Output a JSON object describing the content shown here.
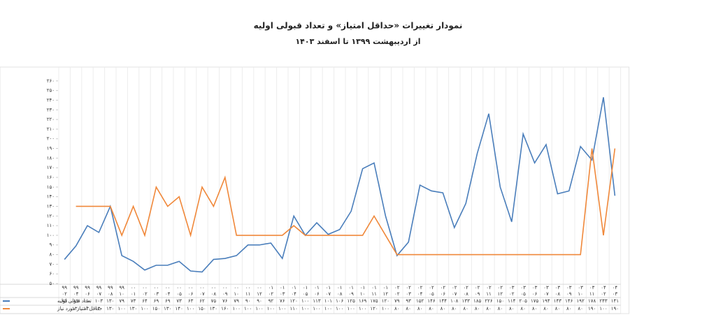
{
  "chart_data": {
    "type": "line",
    "title": "نمودار تغییرات «حداقل امتیاز» و تعداد قبولی اولیه",
    "subtitle": "از اردیبهشت ۱۳۹۹ تا اسفند ۱۴۰۳",
    "categories": [
      [
        "۹۹",
        "۰۲"
      ],
      [
        "۹۹",
        "۰۴"
      ],
      [
        "۹۹",
        "۰۶"
      ],
      [
        "۹۹",
        "۰۷"
      ],
      [
        "۹۹",
        "۰۸"
      ],
      [
        "۹۹",
        "۱۰"
      ],
      [
        "۰۰",
        "۰۱"
      ],
      [
        "۰۰",
        "۰۲"
      ],
      [
        "۰۰",
        "۰۳"
      ],
      [
        "۰۰",
        "۰۴"
      ],
      [
        "۰۰",
        "۰۵"
      ],
      [
        "۰۰",
        "۰۶"
      ],
      [
        "۰۰",
        "۰۷"
      ],
      [
        "۰۰",
        "۰۸"
      ],
      [
        "۰۰",
        "۰۹"
      ],
      [
        "۰۰",
        "۱۰"
      ],
      [
        "۰۰",
        "۱۱"
      ],
      [
        "۰۰",
        "۱۲"
      ],
      [
        "۰۱",
        "۰۲"
      ],
      [
        "۰۱",
        "۰۳"
      ],
      [
        "۰۱",
        "۰۴"
      ],
      [
        "۰۱",
        "۰۵"
      ],
      [
        "۰۱",
        "۰۶"
      ],
      [
        "۰۱",
        "۰۷"
      ],
      [
        "۰۱",
        "۰۸"
      ],
      [
        "۰۱",
        "۰۹"
      ],
      [
        "۰۱",
        "۱۰"
      ],
      [
        "۰۱",
        "۱۱"
      ],
      [
        "۰۱",
        "۱۲"
      ],
      [
        "۰۲",
        "۰۲"
      ],
      [
        "۰۲",
        "۰۳"
      ],
      [
        "۰۲",
        "۰۴"
      ],
      [
        "۰۲",
        "۰۵"
      ],
      [
        "۰۲",
        "۰۶"
      ],
      [
        "۰۲",
        "۰۷"
      ],
      [
        "۰۲",
        "۰۸"
      ],
      [
        "۰۲",
        "۰۹"
      ],
      [
        "۰۲",
        "۱۱"
      ],
      [
        "۰۲",
        "۱۲"
      ],
      [
        "۰۳",
        "۰۲"
      ],
      [
        "۰۳",
        "۰۵"
      ],
      [
        "۰۳",
        "۰۶"
      ],
      [
        "۰۳",
        "۰۷"
      ],
      [
        "۰۳",
        "۰۸"
      ],
      [
        "۰۳",
        "۰۹"
      ],
      [
        "۰۳",
        "۱۰"
      ],
      [
        "۰۳",
        "۱۱"
      ],
      [
        "۰۴",
        "۰۲"
      ],
      [
        "۰۴",
        "۰۳"
      ]
    ],
    "series": [
      {
        "name": "تعداد قبولی اولیه",
        "color": "#4a7ebb",
        "values": [
          75,
          89,
          110,
          103,
          130,
          79,
          73,
          64,
          69,
          69,
          73,
          63,
          62,
          75,
          76,
          79,
          90,
          90,
          92,
          76,
          120,
          100,
          113,
          101,
          106,
          125,
          169,
          175,
          120,
          79,
          93,
          152,
          146,
          144,
          108,
          133,
          185,
          226,
          150,
          114,
          205,
          175,
          194,
          143,
          146,
          192,
          178,
          243,
          141
        ],
        "value_labels": [
          "۷۵",
          "۸۹",
          "۱۱۰",
          "۱۰۳",
          "۱۳۰",
          "۷۹",
          "۷۳",
          "۶۴",
          "۶۹",
          "۶۹",
          "۷۳",
          "۶۳",
          "۶۲",
          "۷۵",
          "۷۶",
          "۷۹",
          "۹۰",
          "۹۰",
          "۹۲",
          "۷۶",
          "۱۲۰",
          "۱۰۰",
          "۱۱۳",
          "۱۰۱",
          "۱۰۶",
          "۱۲۵",
          "۱۶۹",
          "۱۷۵",
          "۱۲۰",
          "۷۹",
          "۹۳",
          "۱۵۲",
          "۱۴۶",
          "۱۴۴",
          "۱۰۸",
          "۱۳۳",
          "۱۸۵",
          "۲۲۶",
          "۱۵۰",
          "۱۱۴",
          "۲۰۵",
          "۱۷۵",
          "۱۹۴",
          "۱۴۳",
          "۱۴۶",
          "۱۹۲",
          "۱۷۸",
          "۲۴۳",
          "۱۴۱"
        ]
      },
      {
        "name": "حداقل امتیاز مورد نیاز",
        "color": "#f0883a",
        "values": [
          null,
          130,
          130,
          130,
          130,
          100,
          130,
          100,
          150,
          130,
          140,
          100,
          150,
          130,
          160,
          100,
          100,
          100,
          100,
          100,
          110,
          100,
          100,
          100,
          100,
          100,
          100,
          120,
          100,
          80,
          80,
          80,
          80,
          80,
          80,
          80,
          80,
          80,
          80,
          80,
          80,
          80,
          80,
          80,
          80,
          80,
          190,
          100,
          190
        ],
        "value_labels": [
          null,
          "۱۳۰",
          "۱۳۰",
          "۱۳۰",
          "۱۳۰",
          "۱۰۰",
          "۱۳۰",
          "۱۰۰",
          "۱۵۰",
          "۱۳۰",
          "۱۴۰",
          "۱۰۰",
          "۱۵۰",
          "۱۳۰",
          "۱۶۰",
          "۱۰۰",
          "۱۰۰",
          "۱۰۰",
          "۱۰۰",
          "۱۰۰",
          "۱۱۰",
          "۱۰۰",
          "۱۰۰",
          "۱۰۰",
          "۱۰۰",
          "۱۰۰",
          "۱۰۰",
          "۱۲۰",
          "۱۰۰",
          "۸۰",
          "۸۰",
          "۸۰",
          "۸۰",
          "۸۰",
          "۸۰",
          "۸۰",
          "۸۰",
          "۸۰",
          "۸۰",
          "۸۰",
          "۸۰",
          "۸۰",
          "۸۰",
          "۸۰",
          "۸۰",
          "۸۰",
          "۱۹۰",
          "۱۰۰",
          "۱۹۰"
        ]
      }
    ],
    "ylim": [
      50,
      270
    ],
    "yticks": [
      {
        "value": 50,
        "label": "۵۰"
      },
      {
        "value": 60,
        "label": "۶۰"
      },
      {
        "value": 70,
        "label": "۷۰"
      },
      {
        "value": 80,
        "label": "۸۰"
      },
      {
        "value": 90,
        "label": "۹۰"
      },
      {
        "value": 100,
        "label": "۱۰۰"
      },
      {
        "value": 110,
        "label": "۱۱۰"
      },
      {
        "value": 120,
        "label": "۱۲۰"
      },
      {
        "value": 130,
        "label": "۱۳۰"
      },
      {
        "value": 140,
        "label": "۱۴۰"
      },
      {
        "value": 150,
        "label": "۱۵۰"
      },
      {
        "value": 160,
        "label": "۱۶۰"
      },
      {
        "value": 170,
        "label": "۱۷۰"
      },
      {
        "value": 180,
        "label": "۱۸۰"
      },
      {
        "value": 190,
        "label": "۱۹۰"
      },
      {
        "value": 200,
        "label": "۲۰۰"
      },
      {
        "value": 210,
        "label": "۲۱۰"
      },
      {
        "value": 220,
        "label": "۲۲۰"
      },
      {
        "value": 230,
        "label": "۲۳۰"
      },
      {
        "value": 240,
        "label": "۲۴۰"
      },
      {
        "value": 250,
        "label": "۲۵۰"
      },
      {
        "value": 260,
        "label": "۲۶۰"
      }
    ],
    "grid": false
  }
}
